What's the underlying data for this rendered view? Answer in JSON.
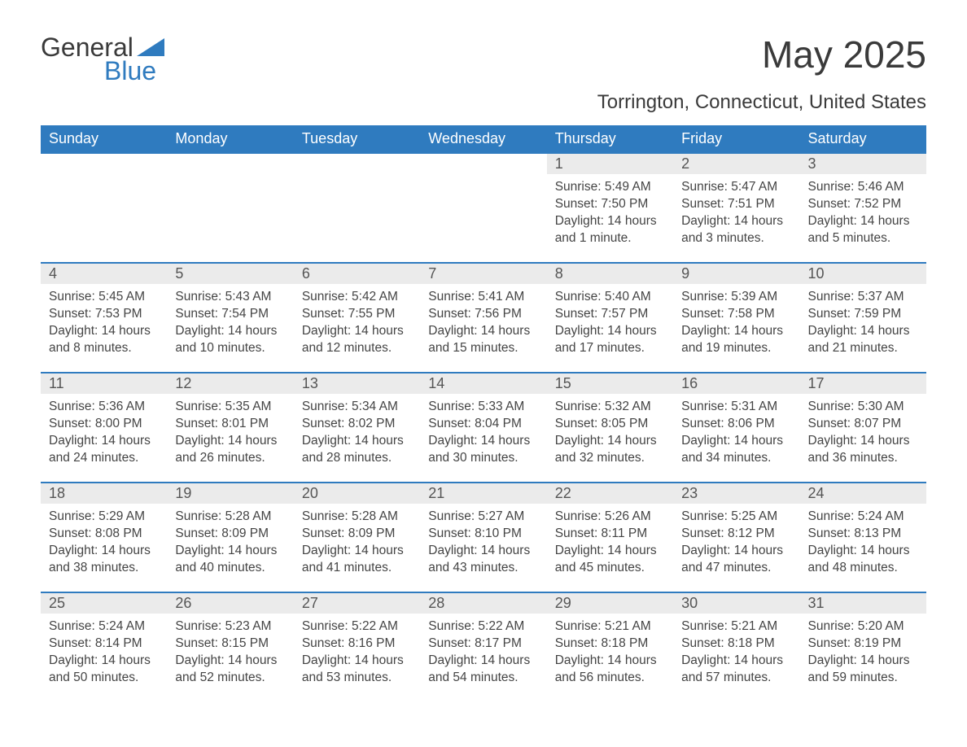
{
  "logo": {
    "general": "General",
    "blue": "Blue"
  },
  "title": "May 2025",
  "subtitle": "Torrington, Connecticut, United States",
  "colors": {
    "header_bg": "#2f7bbf",
    "header_text": "#ffffff",
    "daynum_bg": "#ebebeb",
    "border": "#2f7bbf",
    "body_text": "#444444",
    "title_text": "#3a3a3a",
    "logo_blue": "#2f7bbf"
  },
  "font": {
    "family": "Arial",
    "title_size": 46,
    "subtitle_size": 24,
    "header_size": 18,
    "body_size": 15.5
  },
  "weekdays": [
    "Sunday",
    "Monday",
    "Tuesday",
    "Wednesday",
    "Thursday",
    "Friday",
    "Saturday"
  ],
  "weeks": [
    [
      {
        "day": "",
        "sunrise": "",
        "sunset": "",
        "daylight": ""
      },
      {
        "day": "",
        "sunrise": "",
        "sunset": "",
        "daylight": ""
      },
      {
        "day": "",
        "sunrise": "",
        "sunset": "",
        "daylight": ""
      },
      {
        "day": "",
        "sunrise": "",
        "sunset": "",
        "daylight": ""
      },
      {
        "day": "1",
        "sunrise": "Sunrise: 5:49 AM",
        "sunset": "Sunset: 7:50 PM",
        "daylight": "Daylight: 14 hours and 1 minute."
      },
      {
        "day": "2",
        "sunrise": "Sunrise: 5:47 AM",
        "sunset": "Sunset: 7:51 PM",
        "daylight": "Daylight: 14 hours and 3 minutes."
      },
      {
        "day": "3",
        "sunrise": "Sunrise: 5:46 AM",
        "sunset": "Sunset: 7:52 PM",
        "daylight": "Daylight: 14 hours and 5 minutes."
      }
    ],
    [
      {
        "day": "4",
        "sunrise": "Sunrise: 5:45 AM",
        "sunset": "Sunset: 7:53 PM",
        "daylight": "Daylight: 14 hours and 8 minutes."
      },
      {
        "day": "5",
        "sunrise": "Sunrise: 5:43 AM",
        "sunset": "Sunset: 7:54 PM",
        "daylight": "Daylight: 14 hours and 10 minutes."
      },
      {
        "day": "6",
        "sunrise": "Sunrise: 5:42 AM",
        "sunset": "Sunset: 7:55 PM",
        "daylight": "Daylight: 14 hours and 12 minutes."
      },
      {
        "day": "7",
        "sunrise": "Sunrise: 5:41 AM",
        "sunset": "Sunset: 7:56 PM",
        "daylight": "Daylight: 14 hours and 15 minutes."
      },
      {
        "day": "8",
        "sunrise": "Sunrise: 5:40 AM",
        "sunset": "Sunset: 7:57 PM",
        "daylight": "Daylight: 14 hours and 17 minutes."
      },
      {
        "day": "9",
        "sunrise": "Sunrise: 5:39 AM",
        "sunset": "Sunset: 7:58 PM",
        "daylight": "Daylight: 14 hours and 19 minutes."
      },
      {
        "day": "10",
        "sunrise": "Sunrise: 5:37 AM",
        "sunset": "Sunset: 7:59 PM",
        "daylight": "Daylight: 14 hours and 21 minutes."
      }
    ],
    [
      {
        "day": "11",
        "sunrise": "Sunrise: 5:36 AM",
        "sunset": "Sunset: 8:00 PM",
        "daylight": "Daylight: 14 hours and 24 minutes."
      },
      {
        "day": "12",
        "sunrise": "Sunrise: 5:35 AM",
        "sunset": "Sunset: 8:01 PM",
        "daylight": "Daylight: 14 hours and 26 minutes."
      },
      {
        "day": "13",
        "sunrise": "Sunrise: 5:34 AM",
        "sunset": "Sunset: 8:02 PM",
        "daylight": "Daylight: 14 hours and 28 minutes."
      },
      {
        "day": "14",
        "sunrise": "Sunrise: 5:33 AM",
        "sunset": "Sunset: 8:04 PM",
        "daylight": "Daylight: 14 hours and 30 minutes."
      },
      {
        "day": "15",
        "sunrise": "Sunrise: 5:32 AM",
        "sunset": "Sunset: 8:05 PM",
        "daylight": "Daylight: 14 hours and 32 minutes."
      },
      {
        "day": "16",
        "sunrise": "Sunrise: 5:31 AM",
        "sunset": "Sunset: 8:06 PM",
        "daylight": "Daylight: 14 hours and 34 minutes."
      },
      {
        "day": "17",
        "sunrise": "Sunrise: 5:30 AM",
        "sunset": "Sunset: 8:07 PM",
        "daylight": "Daylight: 14 hours and 36 minutes."
      }
    ],
    [
      {
        "day": "18",
        "sunrise": "Sunrise: 5:29 AM",
        "sunset": "Sunset: 8:08 PM",
        "daylight": "Daylight: 14 hours and 38 minutes."
      },
      {
        "day": "19",
        "sunrise": "Sunrise: 5:28 AM",
        "sunset": "Sunset: 8:09 PM",
        "daylight": "Daylight: 14 hours and 40 minutes."
      },
      {
        "day": "20",
        "sunrise": "Sunrise: 5:28 AM",
        "sunset": "Sunset: 8:09 PM",
        "daylight": "Daylight: 14 hours and 41 minutes."
      },
      {
        "day": "21",
        "sunrise": "Sunrise: 5:27 AM",
        "sunset": "Sunset: 8:10 PM",
        "daylight": "Daylight: 14 hours and 43 minutes."
      },
      {
        "day": "22",
        "sunrise": "Sunrise: 5:26 AM",
        "sunset": "Sunset: 8:11 PM",
        "daylight": "Daylight: 14 hours and 45 minutes."
      },
      {
        "day": "23",
        "sunrise": "Sunrise: 5:25 AM",
        "sunset": "Sunset: 8:12 PM",
        "daylight": "Daylight: 14 hours and 47 minutes."
      },
      {
        "day": "24",
        "sunrise": "Sunrise: 5:24 AM",
        "sunset": "Sunset: 8:13 PM",
        "daylight": "Daylight: 14 hours and 48 minutes."
      }
    ],
    [
      {
        "day": "25",
        "sunrise": "Sunrise: 5:24 AM",
        "sunset": "Sunset: 8:14 PM",
        "daylight": "Daylight: 14 hours and 50 minutes."
      },
      {
        "day": "26",
        "sunrise": "Sunrise: 5:23 AM",
        "sunset": "Sunset: 8:15 PM",
        "daylight": "Daylight: 14 hours and 52 minutes."
      },
      {
        "day": "27",
        "sunrise": "Sunrise: 5:22 AM",
        "sunset": "Sunset: 8:16 PM",
        "daylight": "Daylight: 14 hours and 53 minutes."
      },
      {
        "day": "28",
        "sunrise": "Sunrise: 5:22 AM",
        "sunset": "Sunset: 8:17 PM",
        "daylight": "Daylight: 14 hours and 54 minutes."
      },
      {
        "day": "29",
        "sunrise": "Sunrise: 5:21 AM",
        "sunset": "Sunset: 8:18 PM",
        "daylight": "Daylight: 14 hours and 56 minutes."
      },
      {
        "day": "30",
        "sunrise": "Sunrise: 5:21 AM",
        "sunset": "Sunset: 8:18 PM",
        "daylight": "Daylight: 14 hours and 57 minutes."
      },
      {
        "day": "31",
        "sunrise": "Sunrise: 5:20 AM",
        "sunset": "Sunset: 8:19 PM",
        "daylight": "Daylight: 14 hours and 59 minutes."
      }
    ]
  ]
}
